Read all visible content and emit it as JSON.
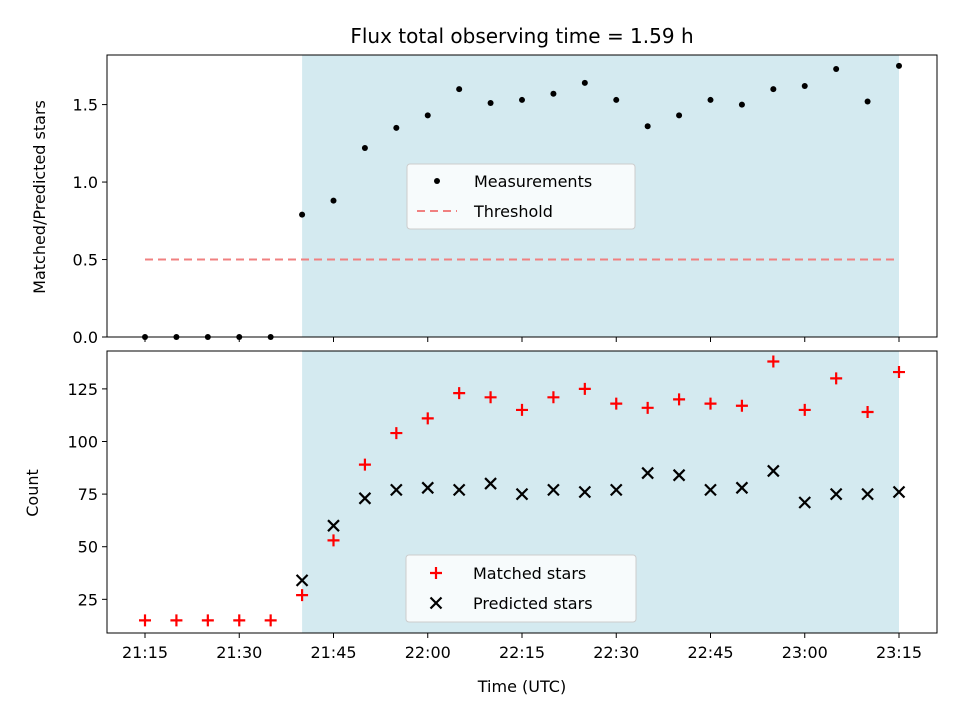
{
  "chart_data": [
    {
      "panel": "top",
      "type": "scatter",
      "title": "Flux total observing time = 1.59 h",
      "xlabel": "",
      "ylabel": "Matched/Predicted stars",
      "ylim": [
        0,
        1.82
      ],
      "yticks": [
        "0.0",
        "0.5",
        "1.0",
        "1.5"
      ],
      "ytick_values": [
        0,
        0.5,
        1.0,
        1.5
      ],
      "legend": {
        "placement": "center",
        "entries": [
          "Measurements",
          "Threshold"
        ]
      },
      "shaded_region": {
        "x_start": "21:40",
        "x_end": "23:15",
        "color": "#d4eaf0"
      },
      "threshold": {
        "name": "Threshold",
        "value": 0.5,
        "x_start": "21:15",
        "x_end": "23:15",
        "color": "#f08080"
      },
      "series": [
        {
          "name": "Measurements",
          "color": "#000000",
          "marker": "dot",
          "x": [
            "21:15",
            "21:20",
            "21:25",
            "21:30",
            "21:35",
            "21:40",
            "21:45",
            "21:50",
            "21:55",
            "22:00",
            "22:05",
            "22:10",
            "22:15",
            "22:20",
            "22:25",
            "22:30",
            "22:35",
            "22:40",
            "22:45",
            "22:50",
            "22:55",
            "23:00",
            "23:05",
            "23:10",
            "23:15"
          ],
          "values": [
            0.0,
            0.0,
            0.0,
            0.0,
            0.0,
            0.79,
            0.88,
            1.22,
            1.35,
            1.43,
            1.6,
            1.51,
            1.53,
            1.57,
            1.64,
            1.53,
            1.36,
            1.43,
            1.53,
            1.5,
            1.6,
            1.62,
            1.73,
            1.52,
            1.75
          ]
        }
      ]
    },
    {
      "panel": "bottom",
      "type": "scatter",
      "title": "",
      "xlabel": "Time (UTC)",
      "ylabel": "Count",
      "ylim": [
        9,
        143
      ],
      "yticks": [
        "25",
        "50",
        "75",
        "100",
        "125"
      ],
      "ytick_values": [
        25,
        50,
        75,
        100,
        125
      ],
      "xticks": [
        "21:15",
        "21:30",
        "21:45",
        "22:00",
        "22:15",
        "22:30",
        "22:45",
        "23:00",
        "23:15"
      ],
      "legend": {
        "placement": "lower center",
        "entries": [
          "Matched stars",
          "Predicted stars"
        ]
      },
      "shaded_region": {
        "x_start": "21:40",
        "x_end": "23:15",
        "color": "#d4eaf0"
      },
      "series": [
        {
          "name": "Matched stars",
          "color": "#ff0000",
          "marker": "plus",
          "x": [
            "21:15",
            "21:20",
            "21:25",
            "21:30",
            "21:35",
            "21:40",
            "21:45",
            "21:50",
            "21:55",
            "22:00",
            "22:05",
            "22:10",
            "22:15",
            "22:20",
            "22:25",
            "22:30",
            "22:35",
            "22:40",
            "22:45",
            "22:50",
            "22:55",
            "23:00",
            "23:05",
            "23:10",
            "23:15"
          ],
          "values": [
            15,
            15,
            15,
            15,
            15,
            27,
            53,
            89,
            104,
            111,
            123,
            121,
            115,
            121,
            125,
            118,
            116,
            120,
            118,
            117,
            138,
            115,
            130,
            114,
            133
          ]
        },
        {
          "name": "Predicted stars",
          "color": "#000000",
          "marker": "x",
          "x": [
            "21:40",
            "21:45",
            "21:50",
            "21:55",
            "22:00",
            "22:05",
            "22:10",
            "22:15",
            "22:20",
            "22:25",
            "22:30",
            "22:35",
            "22:40",
            "22:45",
            "22:50",
            "22:55",
            "23:00",
            "23:05",
            "23:10",
            "23:15"
          ],
          "values": [
            34,
            60,
            73,
            77,
            78,
            77,
            80,
            75,
            77,
            76,
            77,
            85,
            84,
            77,
            78,
            86,
            71,
            75,
            75,
            76
          ]
        }
      ]
    }
  ]
}
